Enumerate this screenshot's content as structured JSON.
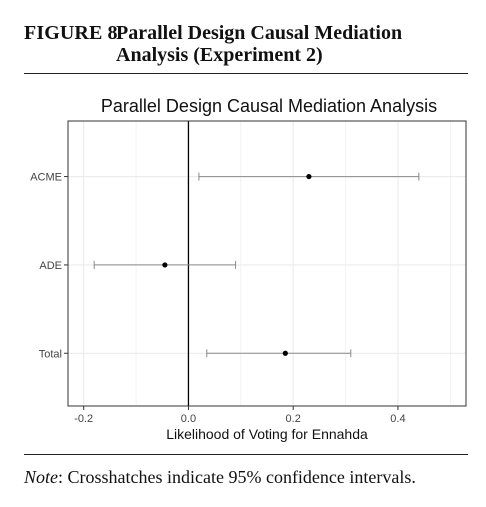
{
  "figure": {
    "label_prefix": "F",
    "label_rest": "IGURE",
    "label_number": " 8",
    "title": "Parallel Design Causal Mediation Analysis (Experiment 2)"
  },
  "note": {
    "label": "Note",
    "text": ": Crosshatches indicate 95% confidence intervals."
  },
  "chart_data": {
    "type": "scatter",
    "title": "Parallel Design Causal Mediation Analysis",
    "xlabel": "Likelihood of Voting for Ennahda",
    "ylabel": "",
    "categories": [
      "ACME",
      "ADE",
      "Total"
    ],
    "estimates": [
      0.23,
      -0.045,
      0.185
    ],
    "ci_lower": [
      0.02,
      -0.18,
      0.035
    ],
    "ci_upper": [
      0.44,
      0.09,
      0.31
    ],
    "xlim": [
      -0.23,
      0.53
    ],
    "xticks": [
      -0.2,
      0.0,
      0.2,
      0.4
    ],
    "xtick_labels": [
      "-0.2",
      "0.0",
      "0.2",
      "0.4"
    ],
    "reference_line": 0.0,
    "grid": true,
    "colors": {
      "point": "#000000",
      "errorbar": "#8a8a8a",
      "reference": "#000000",
      "grid": "#ebebeb",
      "panel_border": "#333333"
    }
  }
}
